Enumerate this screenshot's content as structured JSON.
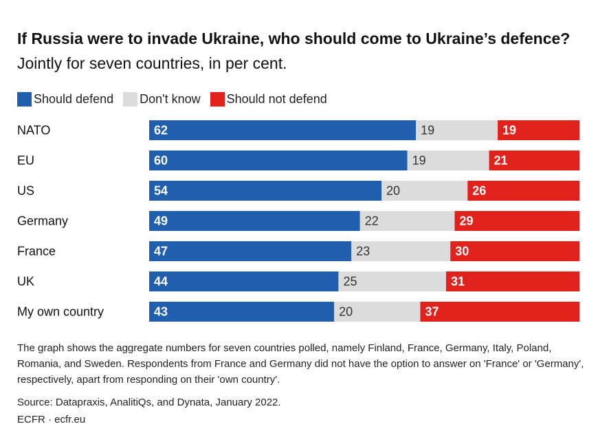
{
  "title": {
    "bold": "If Russia were to invade Ukraine, who should come to Ukraine’s defence?",
    "normal": " Jointly for seven countries, in per cent."
  },
  "legend": [
    {
      "label": "Should defend",
      "color": "#1f5fad"
    },
    {
      "label": "Don't know",
      "color": "#dcdcdc"
    },
    {
      "label": "Should not defend",
      "color": "#e0211c"
    }
  ],
  "chart_data": {
    "type": "bar",
    "orientation": "horizontal",
    "stacked": true,
    "categories": [
      "NATO",
      "EU",
      "US",
      "Germany",
      "France",
      "UK",
      "My own country"
    ],
    "series": [
      {
        "name": "Should defend",
        "color": "#1f5fad",
        "values": [
          62,
          60,
          54,
          49,
          47,
          44,
          43
        ]
      },
      {
        "name": "Don't know",
        "color": "#dcdcdc",
        "values": [
          19,
          19,
          20,
          22,
          23,
          25,
          20
        ]
      },
      {
        "name": "Should not defend",
        "color": "#e0211c",
        "values": [
          19,
          21,
          26,
          29,
          30,
          31,
          37
        ]
      }
    ],
    "xlim": [
      0,
      100
    ],
    "title": "If Russia were to invade Ukraine, who should come to Ukraine’s defence? Jointly for seven countries, in per cent."
  },
  "footnote": "The graph shows the aggregate numbers for seven countries polled, namely Finland, France, Germany, Italy, Poland, Romania, and Sweden. Respondents from France and Germany did not have the option to answer on 'France' or 'Germany', respectively, apart from responding on their 'own country'.",
  "source": "Source: Datapraxis, AnalitiQs, and Dynata, January 2022.",
  "brand": "ECFR · ecfr.eu"
}
